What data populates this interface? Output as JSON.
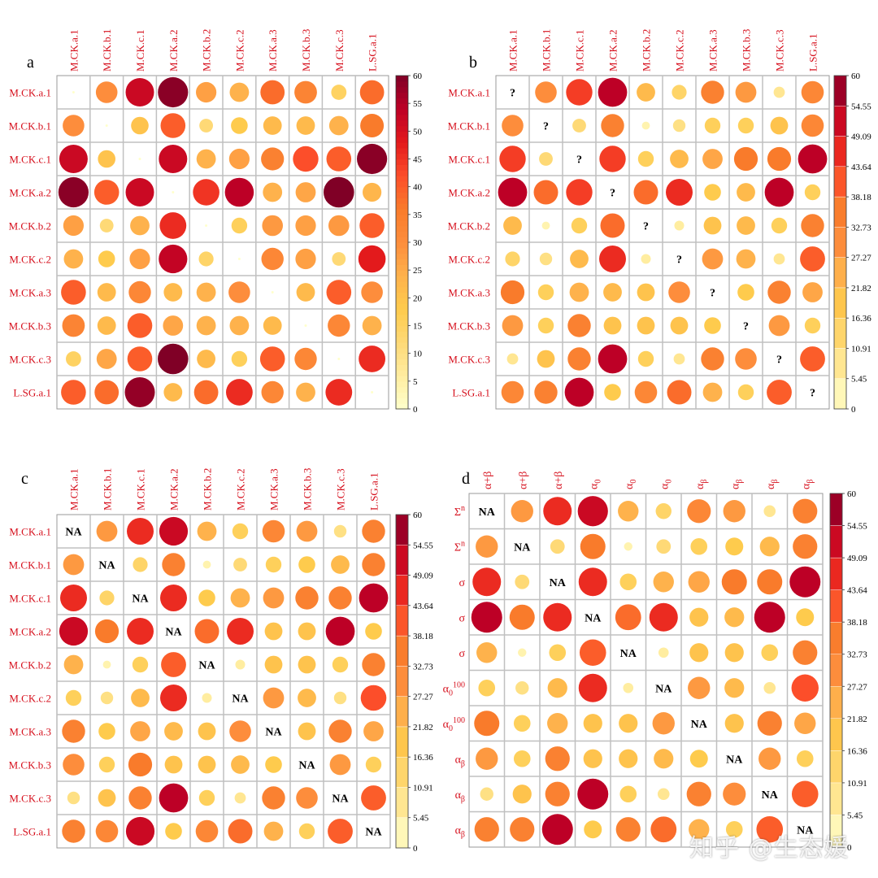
{
  "watermark": "知乎 @生态媛",
  "colors": {
    "label_red": "#d6101d",
    "grid": "#c0c0c0",
    "text": "#000000",
    "scale": [
      "#ffffcc",
      "#ffeda0",
      "#fed976",
      "#fecb4d",
      "#feb24c",
      "#fd8d3c",
      "#f97b2b",
      "#fc4e2a",
      "#e31a1c",
      "#bd0026",
      "#800026"
    ]
  },
  "chart_data": [
    {
      "type": "heatmap",
      "panel": "a",
      "columns": [
        "M.CK.a.1",
        "M.CK.b.1",
        "M.CK.c.1",
        "M.CK.a.2",
        "M.CK.b.2",
        "M.CK.c.2",
        "M.CK.a.3",
        "M.CK.b.3",
        "M.CK.c.3",
        "L.SG.a.1"
      ],
      "rows": [
        "M.CK.a.1",
        "M.CK.b.1",
        "M.CK.c.1",
        "M.CK.a.2",
        "M.CK.b.2",
        "M.CK.c.2",
        "M.CK.a.3",
        "M.CK.b.3",
        "M.CK.c.3",
        "L.SG.a.1"
      ],
      "values": [
        [
          0,
          30,
          52,
          59,
          27,
          24,
          38,
          33,
          15,
          38
        ],
        [
          30,
          0,
          20,
          40,
          12,
          18,
          22,
          22,
          24,
          36
        ],
        [
          52,
          20,
          0,
          52,
          24,
          27,
          34,
          42,
          40,
          59
        ],
        [
          59,
          40,
          52,
          0,
          45,
          54,
          24,
          26,
          60,
          23
        ],
        [
          27,
          12,
          24,
          46,
          0,
          16,
          28,
          27,
          28,
          40
        ],
        [
          24,
          18,
          27,
          53,
          14,
          0,
          32,
          27,
          12,
          48
        ],
        [
          40,
          22,
          32,
          22,
          24,
          30,
          0,
          22,
          40,
          30
        ],
        [
          33,
          22,
          40,
          26,
          24,
          24,
          22,
          0,
          32,
          24
        ],
        [
          15,
          26,
          40,
          60,
          22,
          16,
          40,
          32,
          0,
          46
        ],
        [
          40,
          38,
          58,
          22,
          38,
          46,
          32,
          24,
          46,
          0
        ]
      ],
      "diagonal_label": "",
      "legend": {
        "min": 0,
        "max": 60,
        "ticks": [
          "0",
          "5",
          "10",
          "15",
          "20",
          "25",
          "30",
          "35",
          "40",
          "45",
          "50",
          "55",
          "60"
        ]
      }
    },
    {
      "type": "heatmap",
      "panel": "b",
      "columns": [
        "M.CK.a.1",
        "M.CK.b.1",
        "M.CK.c.1",
        "M.CK.a.2",
        "M.CK.b.2",
        "M.CK.c.2",
        "M.CK.a.3",
        "M.CK.b.3",
        "M.CK.c.3",
        "L.SG.a.1"
      ],
      "rows": [
        "M.CK.a.1",
        "M.CK.b.1",
        "M.CK.c.1",
        "M.CK.a.2",
        "M.CK.b.2",
        "M.CK.c.2",
        "M.CK.a.3",
        "M.CK.b.3",
        "M.CK.c.3",
        "L.SG.a.1"
      ],
      "values": [
        [
          0,
          30,
          44,
          54,
          22,
          14,
          34,
          28,
          8,
          32
        ],
        [
          30,
          0,
          12,
          34,
          4,
          10,
          16,
          16,
          20,
          32
        ],
        [
          44,
          12,
          0,
          44,
          16,
          22,
          26,
          36,
          36,
          54
        ],
        [
          54,
          38,
          44,
          0,
          38,
          46,
          18,
          22,
          54,
          16
        ],
        [
          22,
          4,
          16,
          38,
          0,
          6,
          20,
          22,
          16,
          34
        ],
        [
          14,
          10,
          22,
          46,
          6,
          0,
          28,
          24,
          8,
          40
        ],
        [
          36,
          16,
          24,
          22,
          20,
          30,
          0,
          18,
          34,
          26
        ],
        [
          28,
          16,
          34,
          20,
          20,
          20,
          18,
          0,
          28,
          16
        ],
        [
          8,
          20,
          34,
          54,
          16,
          8,
          34,
          30,
          0,
          40
        ],
        [
          32,
          34,
          54,
          18,
          32,
          38,
          24,
          16,
          40,
          0
        ]
      ],
      "diagonal_label": "?",
      "legend": {
        "min": 0,
        "max": 60,
        "ticks": [
          "0",
          "5.45",
          "10.91",
          "16.36",
          "21.82",
          "27.27",
          "32.73",
          "38.18",
          "43.64",
          "49.09",
          "54.55",
          "60"
        ]
      }
    },
    {
      "type": "heatmap",
      "panel": "c",
      "columns": [
        "M.CK.a.1",
        "M.CK.b.1",
        "M.CK.c.1",
        "M.CK.a.2",
        "M.CK.b.2",
        "M.CK.c.2",
        "M.CK.a.3",
        "M.CK.b.3",
        "M.CK.c.3",
        "L.SG.a.1"
      ],
      "rows": [
        "M.CK.a.1",
        "M.CK.b.1",
        "M.CK.c.1",
        "M.CK.a.2",
        "M.CK.b.2",
        "M.CK.c.2",
        "M.CK.a.3",
        "M.CK.b.3",
        "M.CK.c.3",
        "L.SG.a.1"
      ],
      "values": [
        [
          0,
          28,
          46,
          52,
          24,
          16,
          32,
          28,
          10,
          34
        ],
        [
          28,
          0,
          14,
          34,
          4,
          12,
          16,
          18,
          22,
          34
        ],
        [
          46,
          14,
          0,
          46,
          18,
          24,
          28,
          34,
          34,
          54
        ],
        [
          52,
          36,
          46,
          0,
          38,
          46,
          20,
          20,
          54,
          18
        ],
        [
          24,
          4,
          16,
          40,
          0,
          6,
          20,
          20,
          16,
          34
        ],
        [
          16,
          10,
          22,
          46,
          6,
          0,
          28,
          22,
          10,
          42
        ],
        [
          34,
          18,
          26,
          22,
          20,
          30,
          0,
          20,
          34,
          26
        ],
        [
          30,
          16,
          36,
          20,
          20,
          22,
          18,
          0,
          28,
          16
        ],
        [
          10,
          20,
          34,
          54,
          16,
          8,
          34,
          30,
          0,
          40
        ],
        [
          34,
          32,
          52,
          18,
          32,
          38,
          24,
          16,
          40,
          0
        ]
      ],
      "diagonal_label": "NA",
      "legend": {
        "min": 0,
        "max": 60,
        "ticks": [
          "0",
          "5.45",
          "10.91",
          "16.36",
          "21.82",
          "27.27",
          "32.73",
          "38.18",
          "43.64",
          "49.09",
          "54.55",
          "60"
        ]
      }
    },
    {
      "type": "heatmap",
      "panel": "d",
      "columns": [
        "α+β",
        "α+β",
        "α+β",
        "α0",
        "α0",
        "α0",
        "αβ",
        "αβ",
        "αβ",
        "αβ"
      ],
      "rows": [
        "Σn",
        "Σn",
        "σ",
        "σ",
        "σ",
        "α0_100",
        "α0_100",
        "αβ",
        "αβ",
        "αβ"
      ],
      "values": [
        [
          0,
          28,
          46,
          52,
          24,
          14,
          32,
          28,
          8,
          34
        ],
        [
          28,
          0,
          12,
          36,
          4,
          12,
          16,
          18,
          22,
          34
        ],
        [
          46,
          12,
          0,
          46,
          16,
          24,
          26,
          36,
          36,
          54
        ],
        [
          54,
          36,
          46,
          0,
          38,
          46,
          20,
          22,
          54,
          18
        ],
        [
          24,
          4,
          16,
          40,
          0,
          6,
          20,
          20,
          16,
          34
        ],
        [
          16,
          10,
          22,
          46,
          6,
          0,
          28,
          22,
          8,
          42
        ],
        [
          36,
          16,
          24,
          20,
          20,
          28,
          0,
          20,
          34,
          26
        ],
        [
          28,
          16,
          34,
          20,
          20,
          22,
          18,
          0,
          28,
          16
        ],
        [
          10,
          20,
          34,
          54,
          16,
          8,
          34,
          30,
          0,
          40
        ],
        [
          34,
          34,
          54,
          18,
          34,
          38,
          24,
          16,
          40,
          0
        ]
      ],
      "diagonal_label": "NA",
      "legend": {
        "min": 0,
        "max": 60,
        "ticks": [
          "0",
          "5.45",
          "10.91",
          "16.36",
          "21.82",
          "27.27",
          "32.73",
          "38.18",
          "43.64",
          "49.09",
          "54.55",
          "60"
        ]
      }
    }
  ]
}
